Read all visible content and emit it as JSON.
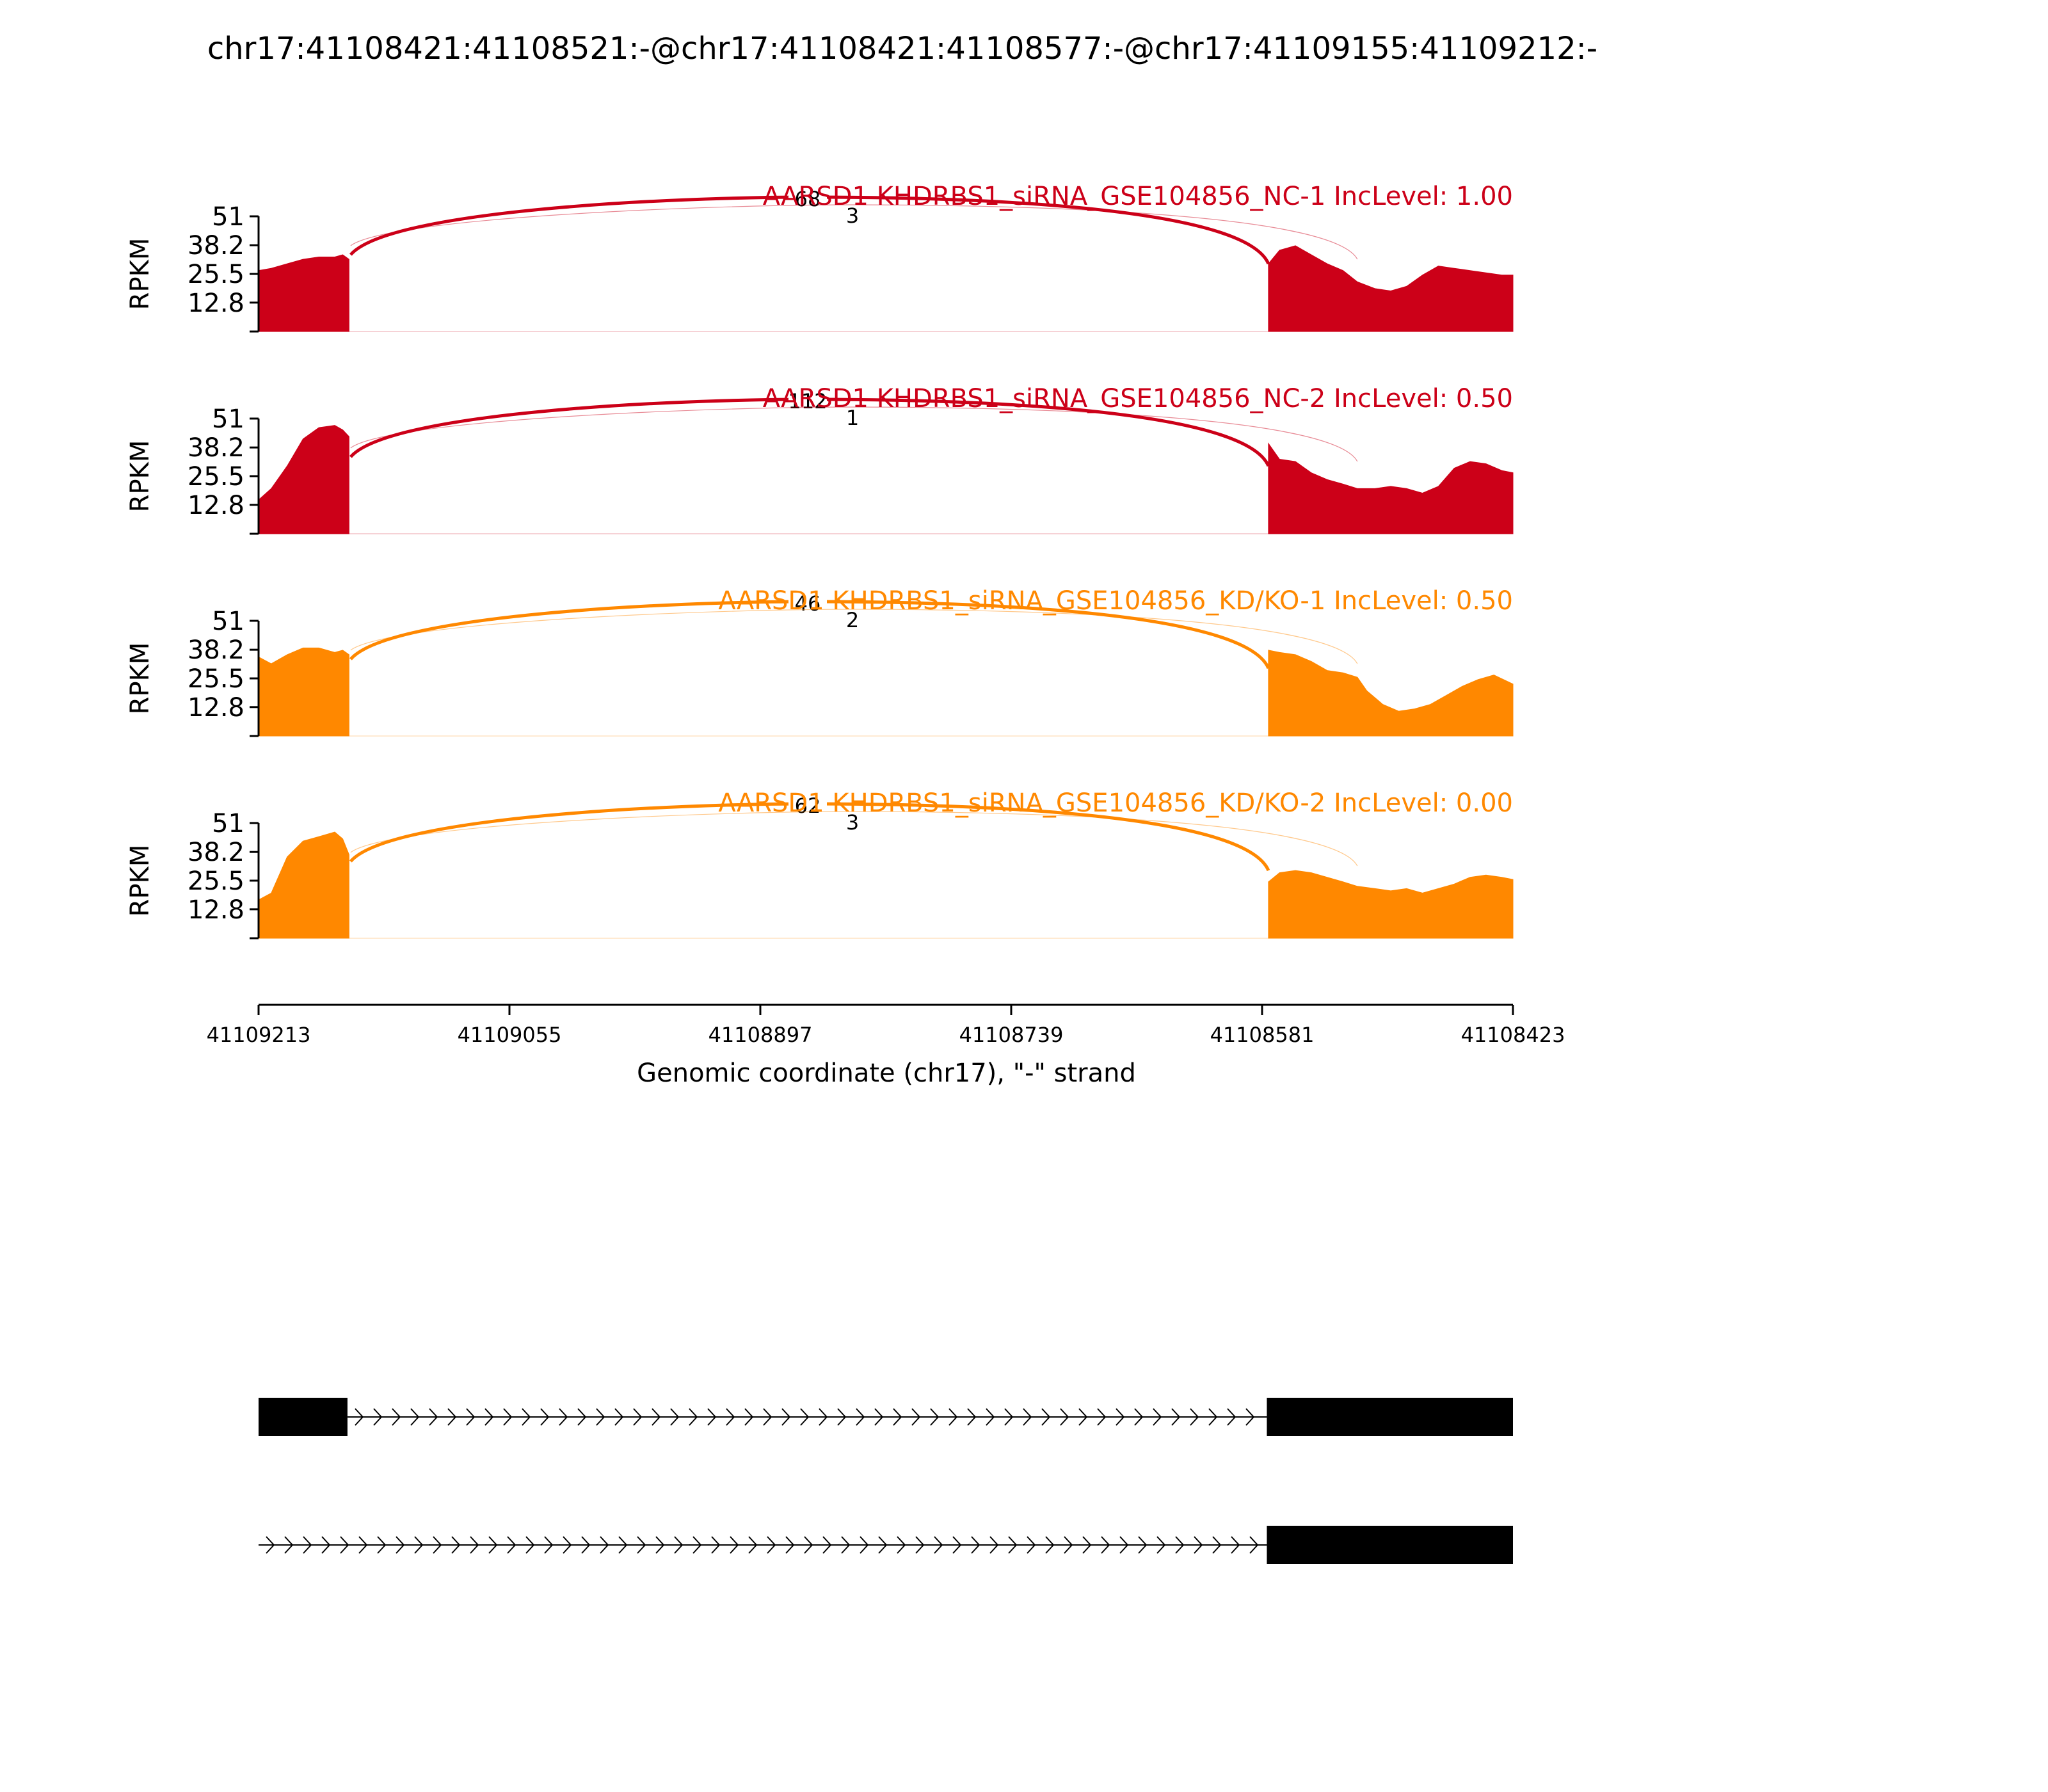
{
  "chart_data": {
    "type": "area",
    "title": "chr17:41108421:41108521:-@chr17:41108421:41108577:-@chr17:41109155:41109212:-",
    "xlabel": "Genomic coordinate (chr17), \"-\" strand",
    "ylabel": "RPKM",
    "x_reversed": true,
    "xlim": [
      41109213,
      41108423
    ],
    "x_ticks": [
      "41109213",
      "41109055",
      "41108897",
      "41108739",
      "41108581",
      "41108423"
    ],
    "ylim": [
      0,
      51
    ],
    "y_ticks": [
      "51",
      "38.2",
      "25.5",
      "12.8"
    ],
    "colors": {
      "NC": "#cc0018",
      "KDKO": "#ff8800",
      "axis": "#000000",
      "exon": "#000000"
    },
    "regions": {
      "exon_left": [
        41109213,
        41109155
      ],
      "exon_right_a": [
        41108577,
        41108521
      ],
      "exon_right_b": [
        41108521,
        41108423
      ]
    },
    "junction_positions": {
      "upstream_donor": 41109155,
      "acceptor_long": 41108577,
      "acceptor_short": 41108521
    },
    "series": [
      {
        "name": "AARSD1 KHDRBS1_siRNA_GSE104856_NC-1 IncLevel: 1.00",
        "group": "NC",
        "profile": [
          [
            41109213,
            27
          ],
          [
            41109205,
            28
          ],
          [
            41109195,
            30
          ],
          [
            41109185,
            32
          ],
          [
            41109175,
            33
          ],
          [
            41109165,
            33
          ],
          [
            41109160,
            34
          ],
          [
            41109156,
            32
          ],
          [
            41108577,
            30
          ],
          [
            41108570,
            36
          ],
          [
            41108560,
            38
          ],
          [
            41108550,
            34
          ],
          [
            41108540,
            30
          ],
          [
            41108530,
            27
          ],
          [
            41108521,
            22
          ],
          [
            41108510,
            19
          ],
          [
            41108500,
            18
          ],
          [
            41108490,
            20
          ],
          [
            41108480,
            25
          ],
          [
            41108470,
            29
          ],
          [
            41108460,
            28
          ],
          [
            41108450,
            27
          ],
          [
            41108440,
            26
          ],
          [
            41108430,
            25
          ],
          [
            41108423,
            25
          ]
        ],
        "junctions": [
          {
            "label": "68",
            "count": 68,
            "from": 41109155,
            "to": 41108577
          },
          {
            "label": "3",
            "count": 3,
            "from": 41109155,
            "to": 41108521
          }
        ]
      },
      {
        "name": "AARSD1 KHDRBS1_siRNA_GSE104856_NC-2 IncLevel: 0.50",
        "group": "NC",
        "profile": [
          [
            41109213,
            15
          ],
          [
            41109205,
            20
          ],
          [
            41109195,
            30
          ],
          [
            41109185,
            42
          ],
          [
            41109175,
            47
          ],
          [
            41109165,
            48
          ],
          [
            41109160,
            46
          ],
          [
            41109156,
            43
          ],
          [
            41108577,
            40
          ],
          [
            41108570,
            33
          ],
          [
            41108560,
            32
          ],
          [
            41108550,
            27
          ],
          [
            41108540,
            24
          ],
          [
            41108530,
            22
          ],
          [
            41108521,
            20
          ],
          [
            41108510,
            20
          ],
          [
            41108500,
            21
          ],
          [
            41108490,
            20
          ],
          [
            41108480,
            18
          ],
          [
            41108470,
            21
          ],
          [
            41108460,
            29
          ],
          [
            41108450,
            32
          ],
          [
            41108440,
            31
          ],
          [
            41108430,
            28
          ],
          [
            41108423,
            27
          ]
        ],
        "junctions": [
          {
            "label": "112",
            "count": 112,
            "from": 41109155,
            "to": 41108577
          },
          {
            "label": "1",
            "count": 1,
            "from": 41109155,
            "to": 41108521
          }
        ]
      },
      {
        "name": "AARSD1 KHDRBS1_siRNA_GSE104856_KD/KO-1 IncLevel: 0.50",
        "group": "KDKO",
        "profile": [
          [
            41109213,
            35
          ],
          [
            41109205,
            32
          ],
          [
            41109195,
            36
          ],
          [
            41109185,
            39
          ],
          [
            41109175,
            39
          ],
          [
            41109165,
            37
          ],
          [
            41109160,
            38
          ],
          [
            41109156,
            36
          ],
          [
            41108577,
            38
          ],
          [
            41108570,
            37
          ],
          [
            41108560,
            36
          ],
          [
            41108550,
            33
          ],
          [
            41108540,
            29
          ],
          [
            41108530,
            28
          ],
          [
            41108521,
            26
          ],
          [
            41108515,
            20
          ],
          [
            41108505,
            14
          ],
          [
            41108495,
            11
          ],
          [
            41108485,
            12
          ],
          [
            41108475,
            14
          ],
          [
            41108465,
            18
          ],
          [
            41108455,
            22
          ],
          [
            41108445,
            25
          ],
          [
            41108435,
            27
          ],
          [
            41108423,
            23
          ]
        ],
        "junctions": [
          {
            "label": "46",
            "count": 46,
            "from": 41109155,
            "to": 41108577
          },
          {
            "label": "2",
            "count": 2,
            "from": 41109155,
            "to": 41108521
          }
        ]
      },
      {
        "name": "AARSD1 KHDRBS1_siRNA_GSE104856_KD/KO-2 IncLevel: 0.00",
        "group": "KDKO",
        "profile": [
          [
            41109213,
            17
          ],
          [
            41109205,
            20
          ],
          [
            41109195,
            36
          ],
          [
            41109185,
            43
          ],
          [
            41109175,
            45
          ],
          [
            41109165,
            47
          ],
          [
            41109160,
            44
          ],
          [
            41109156,
            37
          ],
          [
            41108577,
            25
          ],
          [
            41108570,
            29
          ],
          [
            41108560,
            30
          ],
          [
            41108550,
            29
          ],
          [
            41108540,
            27
          ],
          [
            41108530,
            25
          ],
          [
            41108521,
            23
          ],
          [
            41108510,
            22
          ],
          [
            41108500,
            21
          ],
          [
            41108490,
            22
          ],
          [
            41108480,
            20
          ],
          [
            41108470,
            22
          ],
          [
            41108460,
            24
          ],
          [
            41108450,
            27
          ],
          [
            41108440,
            28
          ],
          [
            41108430,
            27
          ],
          [
            41108423,
            26
          ]
        ],
        "junctions": [
          {
            "label": "62",
            "count": 62,
            "from": 41109155,
            "to": 41108577
          },
          {
            "label": "3",
            "count": 3,
            "from": 41109155,
            "to": 41108521
          }
        ]
      }
    ],
    "transcripts": [
      {
        "exons": [
          [
            41109213,
            41109157
          ],
          [
            41108578,
            41108423
          ]
        ],
        "intron": [
          41109157,
          41108578
        ]
      },
      {
        "exons": [
          [
            41108578,
            41108423
          ]
        ],
        "intron": [
          41109213,
          41108578
        ]
      }
    ]
  }
}
